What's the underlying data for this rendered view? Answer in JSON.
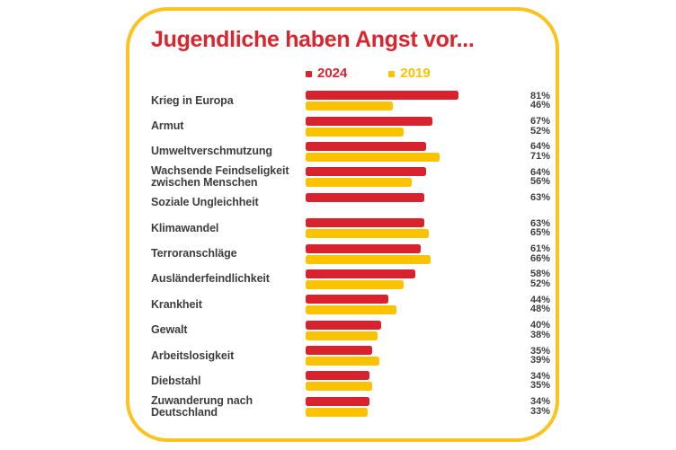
{
  "chart_data": {
    "type": "bar",
    "title": "Jugendliche haben Angst vor...",
    "unit": "%",
    "orientation": "horizontal",
    "legend_position": "top",
    "grid": false,
    "axis": {
      "min": 0,
      "max": 100,
      "ticks_visible": false
    },
    "frame_color": "#FCC21D",
    "title_color": "#D9252E",
    "text_color": "#3E3E3E",
    "legend": [
      {
        "label": "2024",
        "color": "#D8232E"
      },
      {
        "label": "2019",
        "color": "#FBC200"
      }
    ],
    "categories": [
      "Krieg in Europa",
      "Armut",
      "Umweltverschmutzung",
      "Wachsende Feindseligkeit zwischen Menschen",
      "Soziale Ungleichheit",
      "Klimawandel",
      "Terroranschläge",
      "Ausländerfeindlichkeit",
      "Krankheit",
      "Gewalt",
      "Arbeitslosigkeit",
      "Diebstahl",
      "Zuwanderung nach Deutschland"
    ],
    "series": [
      {
        "name": "2024",
        "color": "#D8232E",
        "values": [
          81,
          67,
          64,
          64,
          63,
          63,
          61,
          58,
          44,
          40,
          35,
          34,
          34
        ]
      },
      {
        "name": "2019",
        "color": "#FBC200",
        "values": [
          46,
          52,
          71,
          56,
          null,
          65,
          66,
          52,
          48,
          38,
          39,
          35,
          33
        ]
      }
    ]
  }
}
